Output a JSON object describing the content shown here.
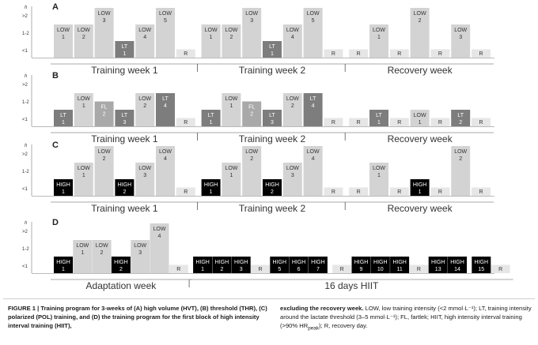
{
  "axis": {
    "h_symbol": "h",
    "levels": [
      ">2",
      "1-2",
      "<1"
    ]
  },
  "colors": {
    "LOW": "#d3d3d3",
    "FL": "#a9a9a9",
    "LT": "#7d7d7d",
    "HIGH": "#000000",
    "R": "#e6e6e6",
    "text_light": "#ffffff",
    "text_dark": "#333333"
  },
  "chart_data": [
    {
      "type": "bar",
      "panel": "A",
      "week_labels": [
        "Training week 1",
        "Training week 2",
        "Recovery week"
      ],
      "sessions": [
        {
          "kind": "LOW",
          "num": "1",
          "level": 2
        },
        {
          "kind": "LOW",
          "num": "2",
          "level": 2
        },
        {
          "kind": "LOW",
          "num": "3",
          "level": 3
        },
        {
          "kind": "LT",
          "num": "1",
          "level": 1
        },
        {
          "kind": "LOW",
          "num": "4",
          "level": 2
        },
        {
          "kind": "LOW",
          "num": "5",
          "level": 3
        },
        {
          "kind": "R",
          "num": "",
          "level": 0.5
        },
        {
          "kind": "LOW",
          "num": "1",
          "level": 2
        },
        {
          "kind": "LOW",
          "num": "2",
          "level": 2
        },
        {
          "kind": "LOW",
          "num": "3",
          "level": 3
        },
        {
          "kind": "LT",
          "num": "1",
          "level": 1
        },
        {
          "kind": "LOW",
          "num": "4",
          "level": 2
        },
        {
          "kind": "LOW",
          "num": "5",
          "level": 3
        },
        {
          "kind": "R",
          "num": "",
          "level": 0.5
        },
        {
          "kind": "R",
          "num": "",
          "level": 0.5
        },
        {
          "kind": "LOW",
          "num": "1",
          "level": 2
        },
        {
          "kind": "R",
          "num": "",
          "level": 0.5
        },
        {
          "kind": "LOW",
          "num": "2",
          "level": 3
        },
        {
          "kind": "R",
          "num": "",
          "level": 0.5
        },
        {
          "kind": "LOW",
          "num": "3",
          "level": 2
        },
        {
          "kind": "R",
          "num": "",
          "level": 0.5
        }
      ]
    },
    {
      "type": "bar",
      "panel": "B",
      "week_labels": [
        "Training week 1",
        "Training week 2",
        "Recovery week"
      ],
      "sessions": [
        {
          "kind": "LT",
          "num": "1",
          "level": 1
        },
        {
          "kind": "LOW",
          "num": "1",
          "level": 2
        },
        {
          "kind": "FL",
          "num": "2",
          "level": 1.5
        },
        {
          "kind": "LT",
          "num": "3",
          "level": 1
        },
        {
          "kind": "LOW",
          "num": "2",
          "level": 2
        },
        {
          "kind": "LT",
          "num": "4",
          "level": 2
        },
        {
          "kind": "R",
          "num": "",
          "level": 0.5
        },
        {
          "kind": "LT",
          "num": "1",
          "level": 1
        },
        {
          "kind": "LOW",
          "num": "1",
          "level": 2
        },
        {
          "kind": "FL",
          "num": "2",
          "level": 1.5
        },
        {
          "kind": "LT",
          "num": "3",
          "level": 1
        },
        {
          "kind": "LOW",
          "num": "2",
          "level": 2
        },
        {
          "kind": "LT",
          "num": "4",
          "level": 2
        },
        {
          "kind": "R",
          "num": "",
          "level": 0.5
        },
        {
          "kind": "R",
          "num": "",
          "level": 0.5
        },
        {
          "kind": "LT",
          "num": "1",
          "level": 1
        },
        {
          "kind": "R",
          "num": "",
          "level": 0.5
        },
        {
          "kind": "LOW",
          "num": "1",
          "level": 1
        },
        {
          "kind": "R",
          "num": "",
          "level": 0.5
        },
        {
          "kind": "LT",
          "num": "2",
          "level": 1
        },
        {
          "kind": "R",
          "num": "",
          "level": 0.5
        }
      ]
    },
    {
      "type": "bar",
      "panel": "C",
      "week_labels": [
        "Training week 1",
        "Training week 2",
        "Recovery week"
      ],
      "sessions": [
        {
          "kind": "HIGH",
          "num": "1",
          "level": 1
        },
        {
          "kind": "LOW",
          "num": "1",
          "level": 2
        },
        {
          "kind": "LOW",
          "num": "2",
          "level": 3
        },
        {
          "kind": "HIGH",
          "num": "2",
          "level": 1
        },
        {
          "kind": "LOW",
          "num": "3",
          "level": 2
        },
        {
          "kind": "LOW",
          "num": "4",
          "level": 3
        },
        {
          "kind": "R",
          "num": "",
          "level": 0.5
        },
        {
          "kind": "HIGH",
          "num": "1",
          "level": 1
        },
        {
          "kind": "LOW",
          "num": "1",
          "level": 2
        },
        {
          "kind": "LOW",
          "num": "2",
          "level": 3
        },
        {
          "kind": "HIGH",
          "num": "2",
          "level": 1
        },
        {
          "kind": "LOW",
          "num": "3",
          "level": 2
        },
        {
          "kind": "LOW",
          "num": "4",
          "level": 3
        },
        {
          "kind": "R",
          "num": "",
          "level": 0.5
        },
        {
          "kind": "R",
          "num": "",
          "level": 0.5
        },
        {
          "kind": "LOW",
          "num": "1",
          "level": 2
        },
        {
          "kind": "R",
          "num": "",
          "level": 0.5
        },
        {
          "kind": "HIGH",
          "num": "1",
          "level": 1
        },
        {
          "kind": "R",
          "num": "",
          "level": 0.5
        },
        {
          "kind": "LOW",
          "num": "2",
          "level": 3
        },
        {
          "kind": "R",
          "num": "",
          "level": 0.5
        }
      ]
    },
    {
      "type": "bar",
      "panel": "D",
      "week_labels": [
        "Adaptation week",
        "16 days HIIT"
      ],
      "sessions": [
        {
          "kind": "HIGH",
          "num": "1",
          "level": 1
        },
        {
          "kind": "LOW",
          "num": "1",
          "level": 2
        },
        {
          "kind": "LOW",
          "num": "2",
          "level": 2
        },
        {
          "kind": "HIGH",
          "num": "2",
          "level": 1
        },
        {
          "kind": "LOW",
          "num": "3",
          "level": 2
        },
        {
          "kind": "LOW",
          "num": "4",
          "level": 3
        },
        {
          "kind": "R",
          "num": "",
          "level": 0.5
        },
        {
          "kind": "HIGH",
          "num": "1",
          "level": 1
        },
        {
          "kind": "HIGH",
          "num": "2",
          "level": 1
        },
        {
          "kind": "HIGH",
          "num": "3",
          "level": 1
        },
        {
          "kind": "R",
          "num": "",
          "level": 0.5
        },
        {
          "kind": "HIGH",
          "num": "5",
          "level": 1
        },
        {
          "kind": "HIGH",
          "num": "6",
          "level": 1
        },
        {
          "kind": "HIGH",
          "num": "7",
          "level": 1
        },
        {
          "kind": "R",
          "num": "",
          "level": 0.5
        },
        {
          "kind": "HIGH",
          "num": "9",
          "level": 1
        },
        {
          "kind": "HIGH",
          "num": "10",
          "level": 1
        },
        {
          "kind": "HIGH",
          "num": "11",
          "level": 1
        },
        {
          "kind": "R",
          "num": "",
          "level": 0.5
        },
        {
          "kind": "HIGH",
          "num": "13",
          "level": 1
        },
        {
          "kind": "HIGH",
          "num": "14",
          "level": 1
        },
        {
          "kind": "HIGH",
          "num": "15",
          "level": 1
        },
        {
          "kind": "R",
          "num": "",
          "level": 0.5
        }
      ]
    }
  ],
  "caption": {
    "left_bold": "FIGURE 1 | Training program for 3-weeks of (A) high volume (HVT), (B) threshold (THR), (C) polarized (POL) training, and (D) the training program for the first block of high intensity interval training (HIIT),",
    "right_bold": "excluding the recovery week.",
    "right_text": " LOW, low training intensity (<2 mmol·L⁻¹); LT, training intensity around the lactate threshold (3–5 mmol·L⁻¹); FL, fartlek; HIIT, high intensity interval training (>90% HR",
    "right_sub": "peak",
    "right_end": "); R, recovery day."
  }
}
